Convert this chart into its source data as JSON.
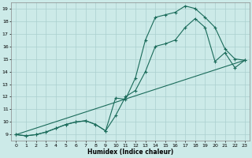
{
  "title": "",
  "xlabel": "Humidex (Indice chaleur)",
  "xlim": [
    -0.5,
    23.5
  ],
  "ylim": [
    8.5,
    19.5
  ],
  "xticks": [
    0,
    1,
    2,
    3,
    4,
    5,
    6,
    7,
    8,
    9,
    10,
    11,
    12,
    13,
    14,
    15,
    16,
    17,
    18,
    19,
    20,
    21,
    22,
    23
  ],
  "yticks": [
    9,
    10,
    11,
    12,
    13,
    14,
    15,
    16,
    17,
    18,
    19
  ],
  "bg_color": "#cceae8",
  "grid_color": "#aacfcf",
  "line_color": "#1a6b5a",
  "line1_x": [
    0,
    1,
    2,
    3,
    4,
    5,
    6,
    7,
    8,
    9,
    10,
    11,
    12,
    13,
    14,
    15,
    16,
    17,
    18,
    19,
    20,
    21,
    22,
    23
  ],
  "line1_y": [
    9.0,
    8.9,
    9.0,
    9.2,
    9.5,
    9.8,
    10.0,
    10.1,
    9.8,
    9.3,
    11.9,
    11.8,
    13.5,
    16.5,
    18.3,
    18.5,
    18.7,
    19.2,
    19.0,
    18.3,
    17.5,
    15.8,
    15.0,
    14.9
  ],
  "line2_x": [
    0,
    1,
    2,
    3,
    4,
    5,
    6,
    7,
    8,
    9,
    10,
    11,
    12,
    13,
    14,
    15,
    16,
    17,
    18,
    19,
    20,
    21,
    22,
    23
  ],
  "line2_y": [
    9.0,
    8.9,
    9.0,
    9.2,
    9.5,
    9.8,
    10.0,
    10.1,
    9.8,
    9.3,
    10.5,
    12.0,
    12.5,
    14.0,
    16.0,
    16.2,
    16.5,
    17.5,
    18.2,
    17.5,
    14.8,
    15.5,
    14.3,
    14.9
  ],
  "line3_x": [
    0,
    23
  ],
  "line3_y": [
    9.0,
    14.9
  ]
}
